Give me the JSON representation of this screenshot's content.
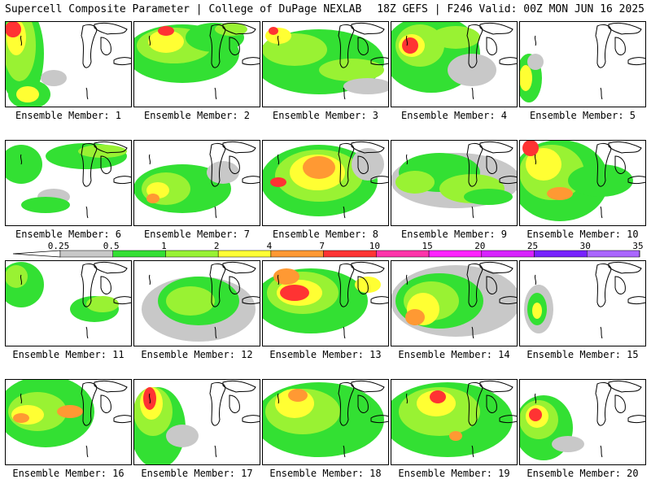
{
  "header": {
    "left": "Supercell Composite Parameter | College of DuPage NEXLAB",
    "right": "18Z GEFS | F246 Valid: 00Z MON JUN 16 2025"
  },
  "colorbar": {
    "labels": [
      "0.25",
      "0.5",
      "1",
      "2",
      "4",
      "7",
      "10",
      "15",
      "20",
      "25",
      "30",
      "35"
    ],
    "colors": [
      "#c8c8c8",
      "#33e033",
      "#99f233",
      "#ffff33",
      "#ff9933",
      "#ff3333",
      "#ff33aa",
      "#ff22ff",
      "#d822ff",
      "#7722ff",
      "#aa66ff",
      "#33e8e8"
    ]
  },
  "palette": {
    "gray": "#c8c8c8",
    "green": "#33e033",
    "lightgreen": "#99f233",
    "yellow": "#ffff33",
    "orange": "#ff9933",
    "red": "#ff3333",
    "map_outline": "#000000"
  },
  "members": [
    {
      "label": "Ensemble Member: 1"
    },
    {
      "label": "Ensemble Member: 2"
    },
    {
      "label": "Ensemble Member: 3"
    },
    {
      "label": "Ensemble Member: 4"
    },
    {
      "label": "Ensemble Member: 5"
    },
    {
      "label": "Ensemble Member: 6"
    },
    {
      "label": "Ensemble Member: 7"
    },
    {
      "label": "Ensemble Member: 8"
    },
    {
      "label": "Ensemble Member: 9"
    },
    {
      "label": "Ensemble Member: 10"
    },
    {
      "label": "Ensemble Member: 11"
    },
    {
      "label": "Ensemble Member: 12"
    },
    {
      "label": "Ensemble Member: 13"
    },
    {
      "label": "Ensemble Member: 14"
    },
    {
      "label": "Ensemble Member: 15"
    },
    {
      "label": "Ensemble Member: 16"
    },
    {
      "label": "Ensemble Member: 17"
    },
    {
      "label": "Ensemble Member: 18"
    },
    {
      "label": "Ensemble Member: 19"
    },
    {
      "label": "Ensemble Member: 20"
    }
  ]
}
